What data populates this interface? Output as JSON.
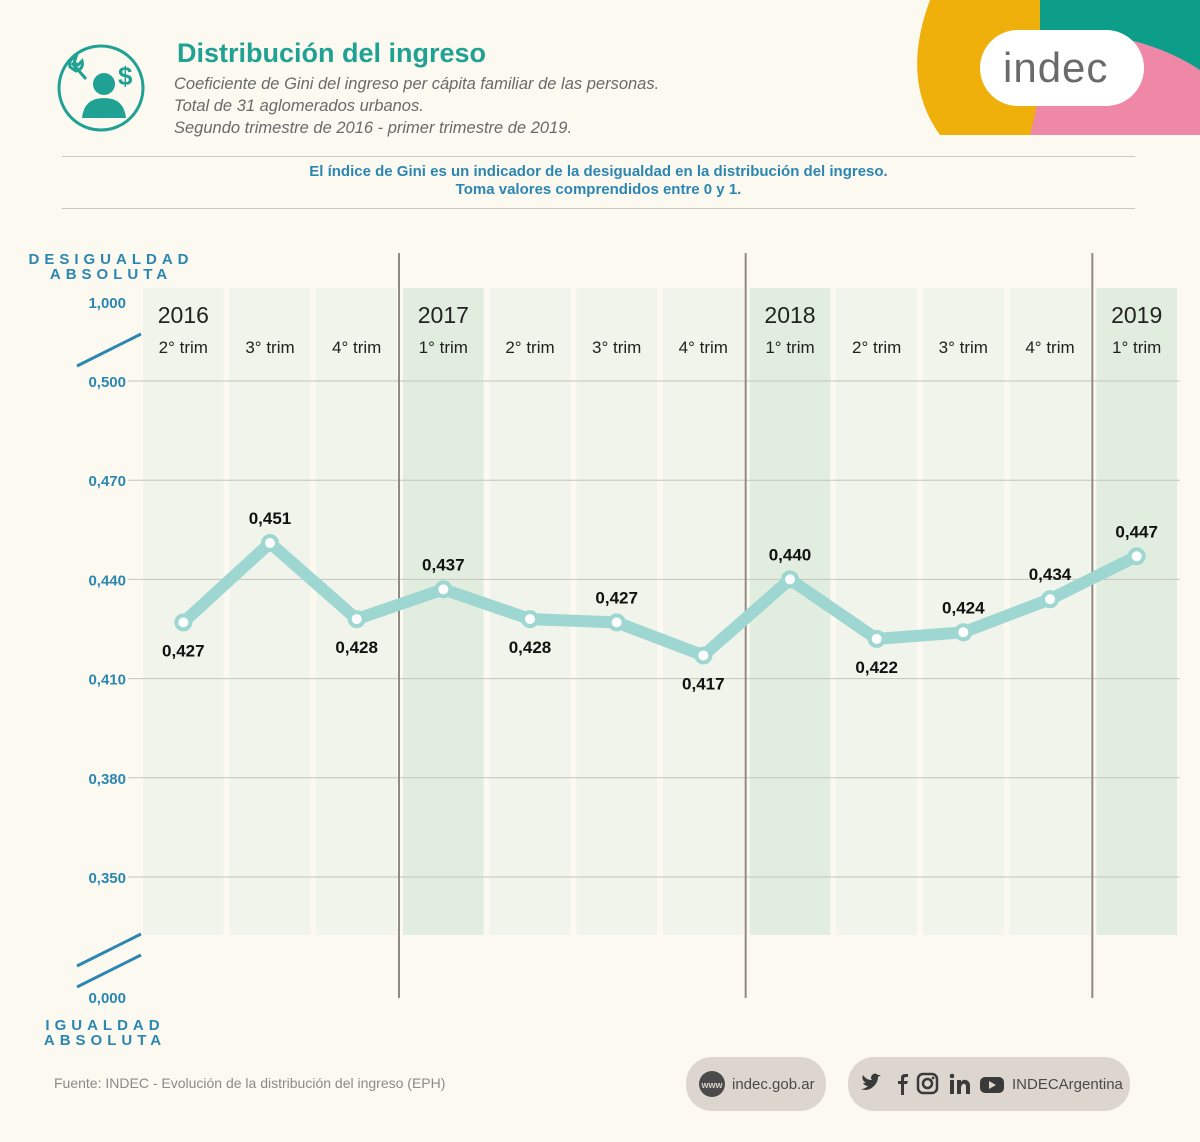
{
  "header": {
    "title": "Distribución del ingreso",
    "subtitle_lines": [
      "Coeficiente de Gini del ingreso per cápita familiar de las personas.",
      "Total de 31 aglomerados urbanos.",
      "Segundo trimestre de 2016 - primer trimestre de 2019."
    ],
    "icon": "person-wrench-dollar-icon"
  },
  "brand": {
    "logo_text": "indec"
  },
  "note_lines": [
    "El índice de Gini es un indicador de la desigualdad en la distribución del ingreso.",
    "Toma valores comprendidos entre 0 y 1."
  ],
  "axis": {
    "top_title_lines": [
      "DESIGUALDAD",
      "ABSOLUTA"
    ],
    "bottom_title_lines": [
      "IGUALDAD",
      "ABSOLUTA"
    ],
    "max_label": "1,000",
    "min_label": "0,000"
  },
  "chart_data": {
    "type": "line",
    "title": "Coeficiente de Gini del ingreso per cápita familiar de las personas",
    "categories": [
      "2° trim",
      "3° trim",
      "4° trim",
      "1° trim",
      "2° trim",
      "3° trim",
      "4° trim",
      "1° trim",
      "2° trim",
      "3° trim",
      "4° trim",
      "1° trim"
    ],
    "years": [
      {
        "label": "2016",
        "start_index": 0
      },
      {
        "label": "2017",
        "start_index": 3
      },
      {
        "label": "2018",
        "start_index": 7
      },
      {
        "label": "2019",
        "start_index": 11
      }
    ],
    "values": [
      0.427,
      0.451,
      0.428,
      0.437,
      0.428,
      0.427,
      0.417,
      0.44,
      0.422,
      0.424,
      0.434,
      0.447
    ],
    "value_labels": [
      "0,427",
      "0,451",
      "0,428",
      "0,437",
      "0,428",
      "0,427",
      "0,417",
      "0,440",
      "0,422",
      "0,424",
      "0,434",
      "0,447"
    ],
    "label_positions": [
      "below",
      "above",
      "below",
      "above",
      "below",
      "above",
      "below",
      "above",
      "below",
      "above",
      "above",
      "above"
    ],
    "yticks": [
      0.35,
      0.38,
      0.41,
      0.44,
      0.47,
      0.5
    ],
    "ytick_labels": [
      "0,350",
      "0,380",
      "0,410",
      "0,440",
      "0,470",
      "0,500"
    ],
    "ylim": [
      0.35,
      0.5
    ],
    "full_scale": [
      0,
      1
    ],
    "ylabel": "",
    "xlabel": "",
    "grid": true,
    "colors": {
      "line": "#9ed6d1",
      "axis_text": "#2b86b2",
      "highlight": "#e1eedf",
      "band": "#f0f4ea"
    }
  },
  "footer": {
    "source": "Fuente: INDEC - Evolución de la distribución del ingreso (EPH)",
    "web_icon": "www-icon",
    "web": "indec.gob.ar",
    "social_icons": [
      "twitter-icon",
      "facebook-icon",
      "instagram-icon",
      "linkedin-icon",
      "youtube-icon"
    ],
    "social_handle": "INDECArgentina"
  }
}
